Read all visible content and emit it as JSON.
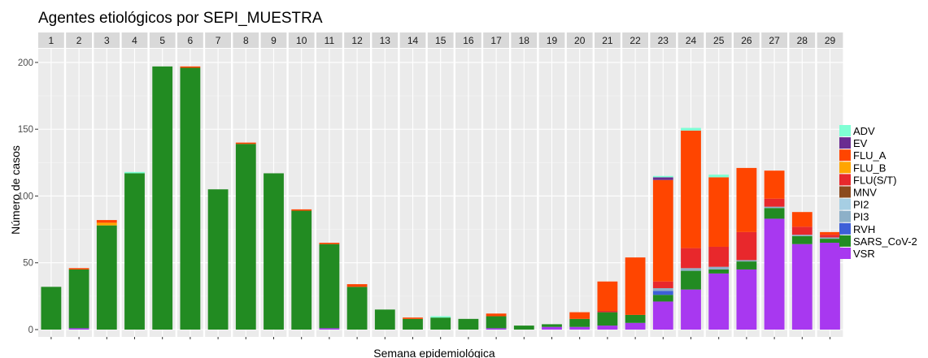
{
  "chart_data": {
    "type": "bar",
    "stacked": true,
    "faceted": true,
    "title": "Agentes etiológicos por SEPI_MUESTRA",
    "xlabel": "Semana epidemiológica",
    "ylabel": "Número de casos",
    "ylim": [
      0,
      210
    ],
    "yticks": [
      0,
      50,
      100,
      150,
      200
    ],
    "grid": true,
    "legend_position": "right",
    "categories": [
      "1",
      "2",
      "3",
      "4",
      "5",
      "6",
      "7",
      "8",
      "9",
      "10",
      "11",
      "12",
      "13",
      "14",
      "15",
      "16",
      "17",
      "18",
      "19",
      "20",
      "21",
      "22",
      "23",
      "24",
      "25",
      "26",
      "27",
      "28",
      "29"
    ],
    "series": [
      {
        "name": "VSR",
        "color": "#A838F0",
        "values": [
          0,
          1,
          0,
          0,
          0,
          0,
          0,
          0,
          0,
          0,
          1,
          0,
          0,
          0,
          0,
          0,
          1,
          0,
          2,
          2,
          3,
          5,
          21,
          30,
          42,
          45,
          83,
          64,
          65
        ]
      },
      {
        "name": "SARS_CoV-2",
        "color": "#228B22",
        "values": [
          32,
          44,
          78,
          117,
          197,
          196,
          105,
          139,
          117,
          89,
          63,
          32,
          15,
          8,
          9,
          8,
          9,
          3,
          2,
          6,
          10,
          6,
          5,
          14,
          3,
          6,
          8,
          6,
          3
        ]
      },
      {
        "name": "RVH",
        "color": "#3D5FD8",
        "values": [
          0,
          0,
          0,
          0,
          0,
          0,
          0,
          0,
          0,
          0,
          0,
          0,
          0,
          0,
          0,
          0,
          0,
          0,
          0,
          0,
          0,
          0,
          3,
          0,
          0,
          0,
          0,
          0,
          0
        ]
      },
      {
        "name": "PI3",
        "color": "#8DB0C8",
        "values": [
          0,
          0,
          0,
          0,
          0,
          0,
          0,
          0,
          0,
          0,
          0,
          0,
          0,
          0,
          0,
          0,
          0,
          0,
          0,
          0,
          0,
          0,
          2,
          2,
          2,
          1,
          1,
          1,
          1
        ]
      },
      {
        "name": "PI2",
        "color": "#A6CEE3",
        "values": [
          0,
          0,
          0,
          0,
          0,
          0,
          0,
          0,
          0,
          0,
          0,
          0,
          0,
          0,
          0,
          0,
          0,
          0,
          0,
          0,
          0,
          0,
          0,
          0,
          0,
          0,
          0,
          0,
          0
        ]
      },
      {
        "name": "MNV",
        "color": "#8B4A1E",
        "values": [
          0,
          0,
          0,
          0,
          0,
          0,
          0,
          0,
          0,
          0,
          0,
          0,
          0,
          0,
          0,
          0,
          0,
          0,
          0,
          0,
          0,
          0,
          0,
          0,
          0,
          0,
          0,
          0,
          0
        ]
      },
      {
        "name": "FLU(S/T)",
        "color": "#E8282C",
        "values": [
          0,
          0,
          0,
          0,
          0,
          0,
          0,
          0,
          0,
          0,
          0,
          0,
          0,
          0,
          0,
          0,
          0,
          0,
          0,
          0,
          1,
          0,
          5,
          15,
          15,
          21,
          6,
          6,
          2
        ]
      },
      {
        "name": "FLU_B",
        "color": "#FFA500",
        "values": [
          0,
          0,
          2,
          0,
          0,
          0,
          0,
          0,
          0,
          0,
          0,
          0,
          0,
          0,
          0,
          0,
          0,
          0,
          0,
          0,
          0,
          0,
          0,
          0,
          0,
          0,
          0,
          0,
          0
        ]
      },
      {
        "name": "FLU_A",
        "color": "#FF4500",
        "values": [
          0,
          1,
          2,
          0,
          0,
          1,
          0,
          1,
          0,
          1,
          1,
          2,
          0,
          1,
          0,
          0,
          2,
          0,
          0,
          5,
          22,
          43,
          76,
          88,
          52,
          48,
          21,
          11,
          2
        ]
      },
      {
        "name": "EV",
        "color": "#6A2C91",
        "values": [
          0,
          0,
          0,
          0,
          0,
          0,
          0,
          0,
          0,
          0,
          0,
          0,
          0,
          0,
          0,
          0,
          0,
          0,
          0,
          0,
          0,
          0,
          2,
          0,
          0,
          0,
          0,
          0,
          0
        ]
      },
      {
        "name": "ADV",
        "color": "#7FFFD4",
        "values": [
          0,
          0,
          0,
          1,
          0,
          0,
          0,
          0,
          0,
          0,
          0,
          0,
          0,
          0,
          1,
          0,
          0,
          0,
          0,
          0,
          0,
          0,
          1,
          2,
          2,
          0,
          0,
          0,
          0
        ]
      }
    ],
    "legend_order": [
      "ADV",
      "EV",
      "FLU_A",
      "FLU_B",
      "FLU(S/T)",
      "MNV",
      "PI2",
      "PI3",
      "RVH",
      "SARS_CoV-2",
      "VSR"
    ]
  }
}
